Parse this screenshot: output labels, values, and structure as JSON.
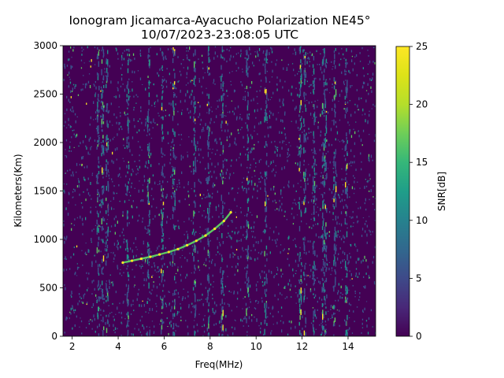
{
  "chart_data": {
    "type": "heatmap",
    "title": "Ionogram Jicamarca-Ayacucho Polarization NE45°",
    "subtitle": "10/07/2023-23:08:05 UTC",
    "xlabel": "Freq(MHz)",
    "ylabel": "Kilometers(Km)",
    "xlim": [
      1.6,
      15.2
    ],
    "ylim": [
      0,
      3000
    ],
    "xticks": [
      2,
      4,
      6,
      8,
      10,
      12,
      14
    ],
    "yticks": [
      0,
      500,
      1000,
      1500,
      2000,
      2500,
      3000
    ],
    "colorbar": {
      "label": "SNR[dB]",
      "range": [
        0,
        25
      ],
      "ticks": [
        0,
        5,
        10,
        15,
        20,
        25
      ],
      "colormap": "viridis"
    },
    "colors": [
      "#440154",
      "#3b528b",
      "#21918c",
      "#5ec962",
      "#fde725"
    ],
    "noise_columns_mhz": [
      3.1,
      3.3,
      3.5,
      4.4,
      5.3,
      5.9,
      6.4,
      7.3,
      7.9,
      8.5,
      9.6,
      10.4,
      11.9,
      12.1,
      12.5,
      12.9,
      13.0,
      13.4,
      13.9
    ],
    "trace": {
      "freq_mhz": [
        4.2,
        4.6,
        5.0,
        5.4,
        5.8,
        6.2,
        6.6,
        7.0,
        7.4,
        7.8,
        8.2,
        8.6,
        8.9
      ],
      "height_km": [
        760,
        780,
        800,
        820,
        845,
        870,
        900,
        940,
        985,
        1040,
        1110,
        1190,
        1280
      ]
    }
  }
}
